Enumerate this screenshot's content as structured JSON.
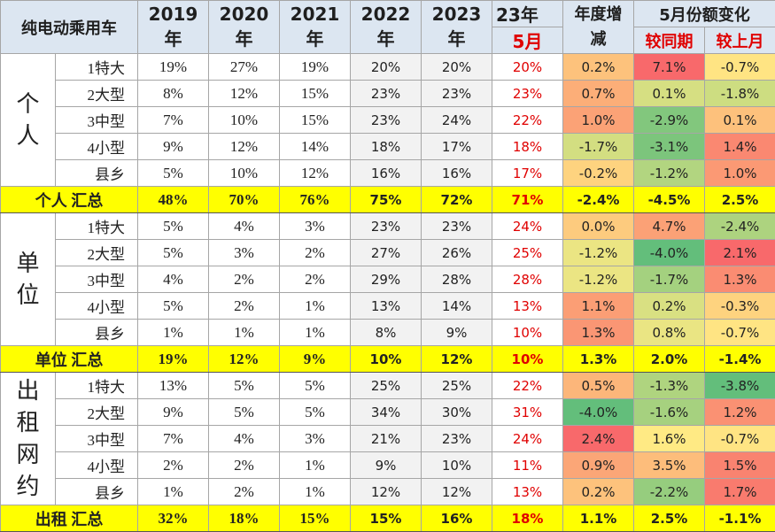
{
  "header": {
    "corner": "纯电动乘用车",
    "columns": [
      {
        "year": "2019",
        "unit": "年"
      },
      {
        "year": "2020",
        "unit": "年"
      },
      {
        "year": "2021",
        "unit": "年"
      },
      {
        "year": "2022",
        "unit": "年"
      },
      {
        "year": "2023",
        "unit": "年"
      }
    ],
    "month_col": {
      "top": "23年",
      "bottom": "5月"
    },
    "change_col": "年度增减",
    "share_change": {
      "title": "5月份额变化",
      "cols": [
        "较同期",
        "较上月"
      ]
    }
  },
  "groups": [
    {
      "label": "个人",
      "rows": [
        {
          "label": "1特大",
          "cells": [
            "19%",
            "27%",
            "19%",
            "20%",
            "20%",
            "20%",
            "0.2%",
            "7.1%",
            "-0.7%"
          ]
        },
        {
          "label": "2大型",
          "cells": [
            "8%",
            "12%",
            "15%",
            "23%",
            "23%",
            "23%",
            "0.7%",
            "0.1%",
            "-1.8%"
          ]
        },
        {
          "label": "3中型",
          "cells": [
            "7%",
            "10%",
            "15%",
            "23%",
            "24%",
            "22%",
            "1.0%",
            "-2.9%",
            "0.1%"
          ]
        },
        {
          "label": "4小型",
          "cells": [
            "9%",
            "12%",
            "14%",
            "18%",
            "17%",
            "18%",
            "-1.7%",
            "-3.1%",
            "1.4%"
          ]
        },
        {
          "label": "县乡",
          "cells": [
            "5%",
            "10%",
            "12%",
            "16%",
            "16%",
            "17%",
            "-0.2%",
            "-1.2%",
            "1.0%"
          ]
        }
      ],
      "total": {
        "label": "个人 汇总",
        "cells": [
          "48%",
          "70%",
          "76%",
          "75%",
          "72%",
          "71%",
          "-2.4%",
          "-4.5%",
          "2.5%"
        ]
      }
    },
    {
      "label": "单位",
      "rows": [
        {
          "label": "1特大",
          "cells": [
            "5%",
            "4%",
            "3%",
            "23%",
            "23%",
            "24%",
            "0.0%",
            "4.7%",
            "-2.4%"
          ]
        },
        {
          "label": "2大型",
          "cells": [
            "5%",
            "3%",
            "2%",
            "27%",
            "26%",
            "25%",
            "-1.2%",
            "-4.0%",
            "2.1%"
          ]
        },
        {
          "label": "3中型",
          "cells": [
            "4%",
            "2%",
            "2%",
            "29%",
            "28%",
            "28%",
            "-1.2%",
            "-1.7%",
            "1.3%"
          ]
        },
        {
          "label": "4小型",
          "cells": [
            "5%",
            "2%",
            "1%",
            "13%",
            "14%",
            "13%",
            "1.1%",
            "0.2%",
            "-0.3%"
          ]
        },
        {
          "label": "县乡",
          "cells": [
            "1%",
            "1%",
            "1%",
            "8%",
            "9%",
            "10%",
            "1.3%",
            "0.8%",
            "-0.7%"
          ]
        }
      ],
      "total": {
        "label": "单位 汇总",
        "cells": [
          "19%",
          "12%",
          "9%",
          "10%",
          "12%",
          "10%",
          "1.3%",
          "2.0%",
          "-1.4%"
        ]
      }
    },
    {
      "label": "出租网约",
      "rows": [
        {
          "label": "1特大",
          "cells": [
            "13%",
            "5%",
            "5%",
            "25%",
            "25%",
            "22%",
            "0.5%",
            "-1.3%",
            "-3.8%"
          ]
        },
        {
          "label": "2大型",
          "cells": [
            "9%",
            "5%",
            "5%",
            "34%",
            "30%",
            "31%",
            "-4.0%",
            "-1.6%",
            "1.2%"
          ]
        },
        {
          "label": "3中型",
          "cells": [
            "7%",
            "4%",
            "3%",
            "21%",
            "23%",
            "24%",
            "2.4%",
            "1.6%",
            "-0.7%"
          ]
        },
        {
          "label": "4小型",
          "cells": [
            "2%",
            "2%",
            "1%",
            "9%",
            "10%",
            "11%",
            "0.9%",
            "3.5%",
            "1.5%"
          ]
        },
        {
          "label": "县乡",
          "cells": [
            "1%",
            "2%",
            "1%",
            "12%",
            "12%",
            "13%",
            "0.2%",
            "-2.2%",
            "1.7%"
          ]
        }
      ],
      "total": {
        "label": "出租 汇总",
        "cells": [
          "32%",
          "18%",
          "15%",
          "15%",
          "16%",
          "18%",
          "1.1%",
          "2.5%",
          "-1.1%"
        ]
      }
    }
  ]
}
